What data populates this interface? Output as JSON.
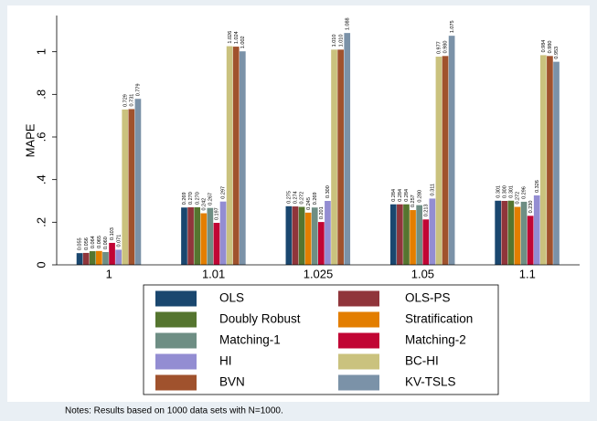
{
  "chart_data": {
    "type": "bar",
    "y_label": "MAPE",
    "categories": [
      "1",
      "1.01",
      "1.025",
      "1.05",
      "1.1"
    ],
    "ylim": [
      0,
      1.17
    ],
    "yticks": [
      0,
      {
        "value": 0.2,
        "label": ".2"
      },
      {
        "value": 0.4,
        "label": ".4"
      },
      {
        "value": 0.6,
        "label": ".6"
      },
      {
        "value": 0.8,
        "label": ".8"
      },
      1
    ],
    "series": [
      {
        "name": "OLS",
        "color": "#1a476f",
        "values": [
          0.055,
          0.269,
          0.275,
          0.284,
          0.301
        ],
        "value_labels": [
          "0.055",
          "0.269",
          "0.275",
          "0.284",
          "0.301"
        ]
      },
      {
        "name": "OLS-PS",
        "color": "#90353b",
        "values": [
          0.056,
          0.27,
          0.274,
          0.284,
          0.3
        ],
        "value_labels": [
          "0.056",
          "0.270",
          "0.274",
          "0.284",
          "0.300"
        ]
      },
      {
        "name": "Doubly Robust",
        "color": "#55752f",
        "values": [
          0.064,
          0.27,
          0.272,
          0.284,
          0.301
        ],
        "value_labels": [
          "0.064",
          "0.270",
          "0.272",
          "0.284",
          "0.301"
        ]
      },
      {
        "name": "Stratification",
        "color": "#e37e00",
        "values": [
          0.065,
          0.242,
          0.245,
          0.257,
          0.272
        ],
        "value_labels": [
          "0.065",
          "0.242",
          "0.245",
          "0.257",
          "0.272"
        ]
      },
      {
        "name": "Matching-1",
        "color": "#6e8e84",
        "values": [
          0.06,
          0.267,
          0.269,
          0.28,
          0.296
        ],
        "value_labels": [
          "0.060",
          "0.267",
          "0.269",
          "0.280",
          "0.296"
        ]
      },
      {
        "name": "Matching-2",
        "color": "#c10534",
        "values": [
          0.103,
          0.197,
          0.201,
          0.213,
          0.23
        ],
        "value_labels": [
          "0.103",
          "0.197",
          "0.201",
          "0.213",
          "0.230"
        ]
      },
      {
        "name": "HI",
        "color": "#938dd2",
        "values": [
          0.071,
          0.297,
          0.3,
          0.311,
          0.326
        ],
        "value_labels": [
          "0.071",
          "0.297",
          "0.300",
          "0.311",
          "0.326"
        ]
      },
      {
        "name": "BC-HI",
        "color": "#cac27e",
        "values": [
          0.729,
          1.026,
          1.01,
          0.977,
          0.984
        ],
        "value_labels": [
          "0.729",
          "1.026",
          "1.010",
          "0.977",
          "0.984"
        ]
      },
      {
        "name": "BVN",
        "color": "#a0522d",
        "values": [
          0.731,
          1.024,
          1.01,
          0.98,
          0.98
        ],
        "value_labels": [
          "0.731",
          "1.024",
          "1.010",
          "0.980",
          "0.980"
        ]
      },
      {
        "name": "KV-TSLS",
        "color": "#7b92a8",
        "values": [
          0.779,
          1.002,
          1.088,
          1.075,
          0.953
        ],
        "value_labels": [
          "0.779",
          "1.002",
          "1.088",
          "1.075",
          "0.953"
        ]
      }
    ],
    "notes": "Notes: Results based on 1000 data sets with N=1000."
  }
}
